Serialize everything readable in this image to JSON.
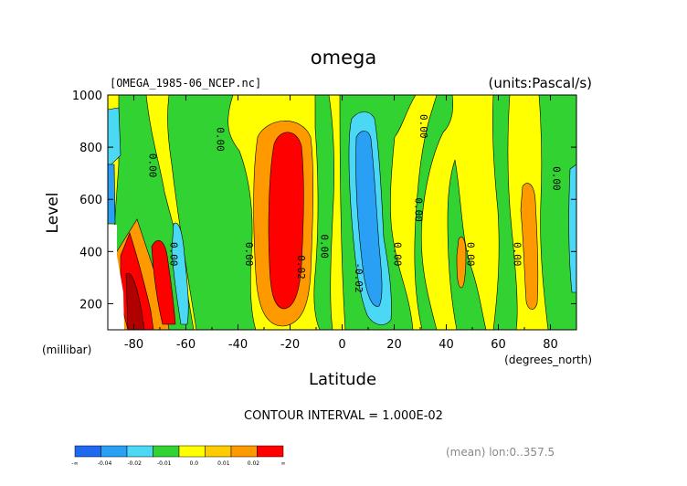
{
  "chart_data": {
    "type": "heatmap",
    "title": "omega",
    "subtitle_left": "[OMEGA_1985-06_NCEP.nc]",
    "subtitle_right": "(units:Pascal/s)",
    "xlabel": "Latitude",
    "xunit": "(degrees_north)",
    "ylabel": "Level",
    "yunit": "(millibar)",
    "xlim": [
      -90,
      90
    ],
    "ylim": [
      1000,
      100
    ],
    "x_ticks": [
      -80,
      -60,
      -40,
      -20,
      0,
      20,
      40,
      60,
      80
    ],
    "x_tick_labels": [
      "-80",
      "-60",
      "-40",
      "-20",
      "0",
      "20",
      "40",
      "60",
      "80"
    ],
    "y_ticks": [
      200,
      400,
      600,
      800,
      1000
    ],
    "y_tick_labels": [
      "200",
      "400",
      "600",
      "800",
      "1000"
    ],
    "contour_interval_text": "CONTOUR INTERVAL = 1.000E-02",
    "footnote": "(mean) lon:0..357.5",
    "contour_labels": [
      {
        "x": -66,
        "y": 390,
        "text": "0.00"
      },
      {
        "x": -37,
        "y": 390,
        "text": "0.00"
      },
      {
        "x": -48,
        "y": 830,
        "text": "0.00"
      },
      {
        "x": -74,
        "y": 730,
        "text": "0.00"
      },
      {
        "x": -17,
        "y": 340,
        "text": "0.02"
      },
      {
        "x": -8,
        "y": 420,
        "text": "0.00"
      },
      {
        "x": 5,
        "y": 300,
        "text": "-0.02"
      },
      {
        "x": 20,
        "y": 390,
        "text": "0.00"
      },
      {
        "x": 28,
        "y": 560,
        "text": "0.00"
      },
      {
        "x": 30,
        "y": 880,
        "text": "0.00"
      },
      {
        "x": 48,
        "y": 390,
        "text": "0.00"
      },
      {
        "x": 66,
        "y": 390,
        "text": "0.00"
      },
      {
        "x": 81,
        "y": 680,
        "text": "0.00"
      }
    ],
    "legend": {
      "colors": [
        "#1e69f0",
        "#2aa0f5",
        "#4bd8f5",
        "#32d232",
        "#ffff00",
        "#ffcc00",
        "#ff9900",
        "#ff0000"
      ],
      "labels": [
        "-∞",
        "-0.04",
        "-0.02",
        "-0.01",
        "0.0",
        "0.01",
        "0.02",
        "∞"
      ]
    }
  }
}
